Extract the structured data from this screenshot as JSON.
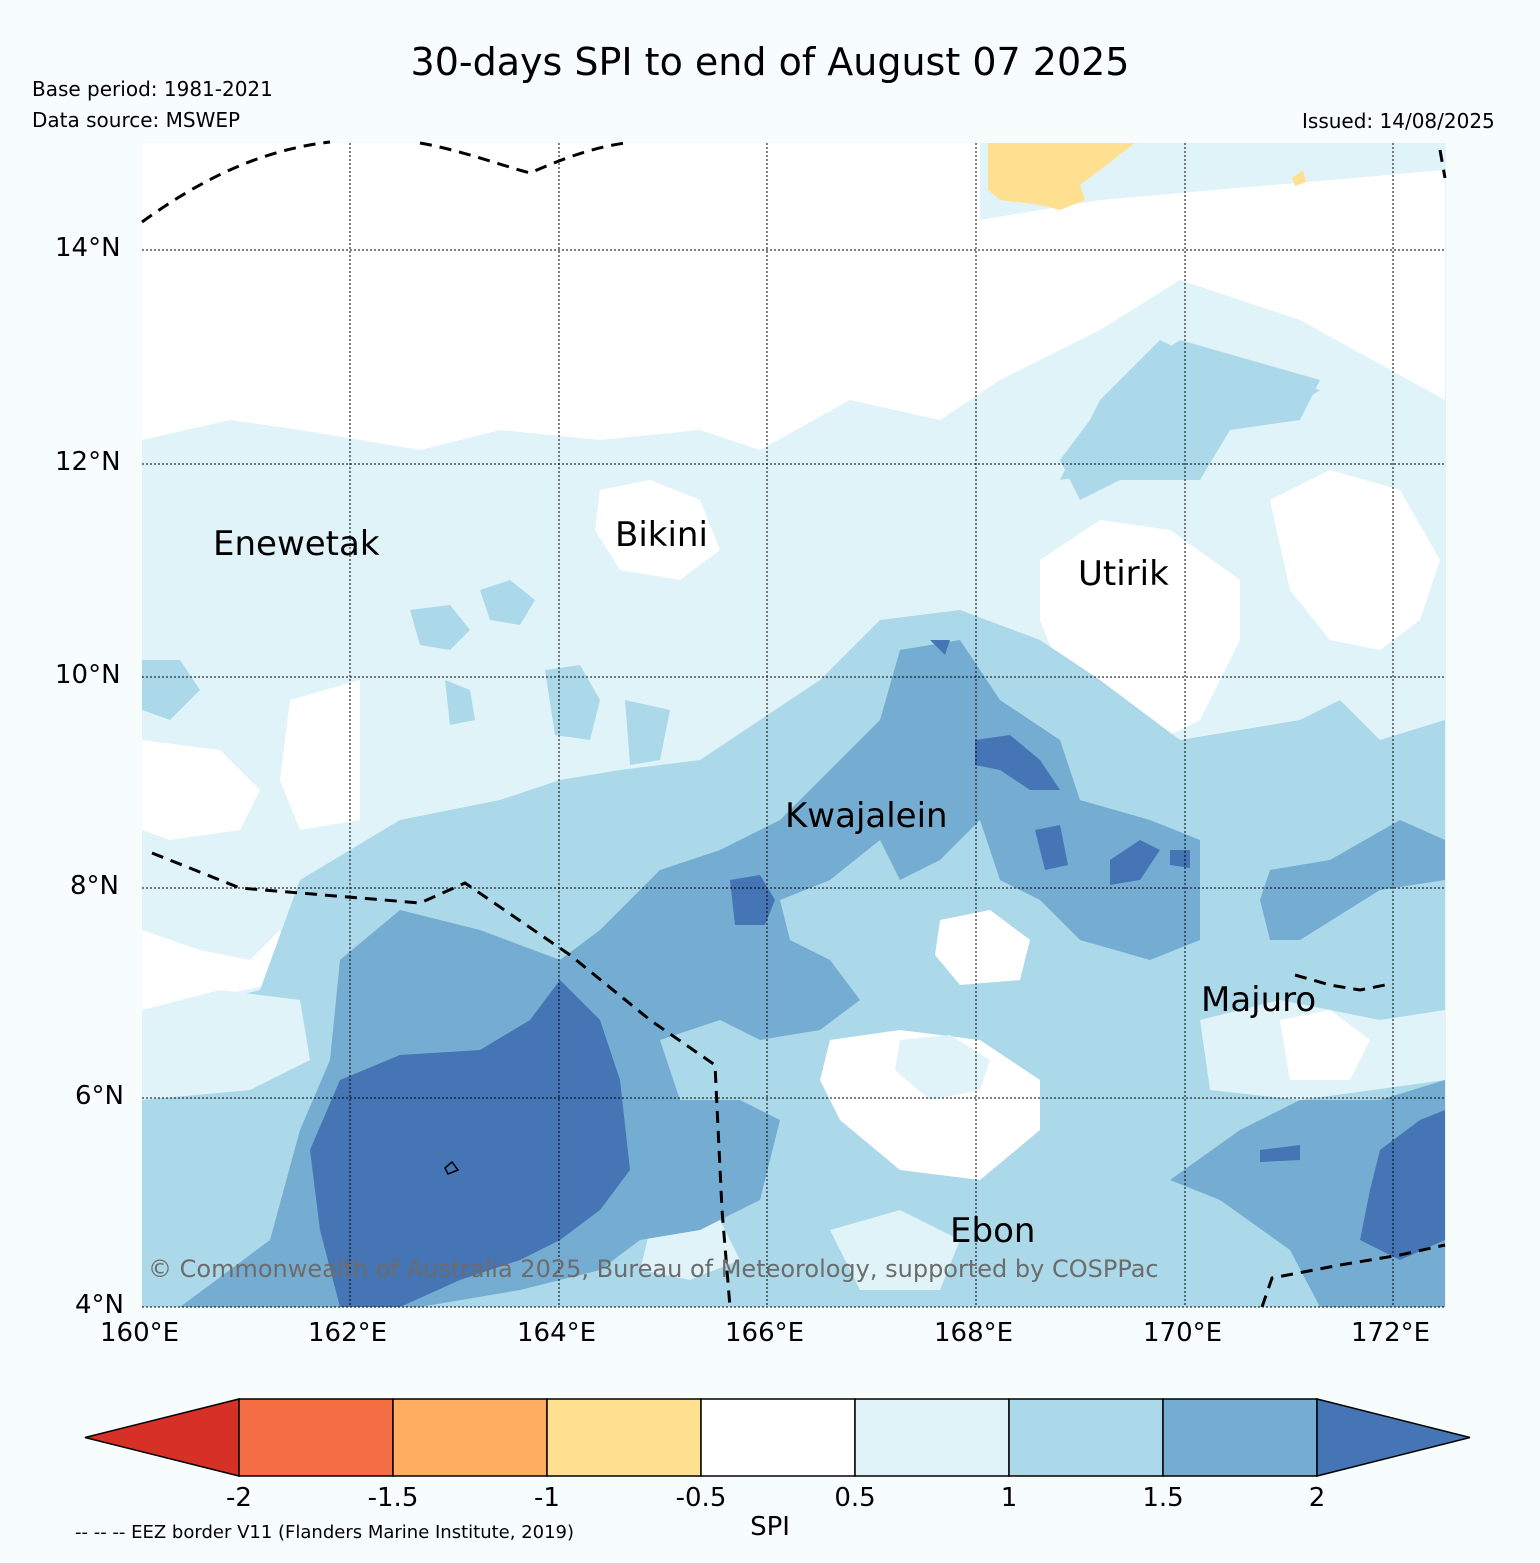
{
  "title": "30-days SPI to end of August 07 2025",
  "base_period": "Base period: 1981-2021",
  "data_source": "Data source: MSWEP",
  "issued": "Issued: 14/08/2025",
  "lat_ticks": [
    "14°N",
    "12°N",
    "10°N",
    "8°N",
    "6°N",
    "4°N"
  ],
  "lon_ticks": [
    "160°E",
    "162°E",
    "164°E",
    "166°E",
    "168°E",
    "170°E",
    "172°E"
  ],
  "places": [
    "Enewetak",
    "Bikini",
    "Utirik",
    "Kwajalein",
    "Majuro",
    "Ebon"
  ],
  "copyright": "© Commonwealth of Australia 2025, Bureau of Meteorology, supported by COSPPac",
  "colorbar": {
    "title": "SPI",
    "labels": [
      "-2",
      "-1.5",
      "-1",
      "-0.5",
      "0.5",
      "1",
      "1.5",
      "2"
    ],
    "colors": [
      "#d73027",
      "#f46d43",
      "#fdae61",
      "#fee090",
      "#ffffff",
      "#e0f3f8",
      "#abd9e9",
      "#74add1",
      "#4575b4"
    ]
  },
  "eez_note": "-- -- -- EEZ border V11 (Flanders Marine Institute, 2019)"
}
